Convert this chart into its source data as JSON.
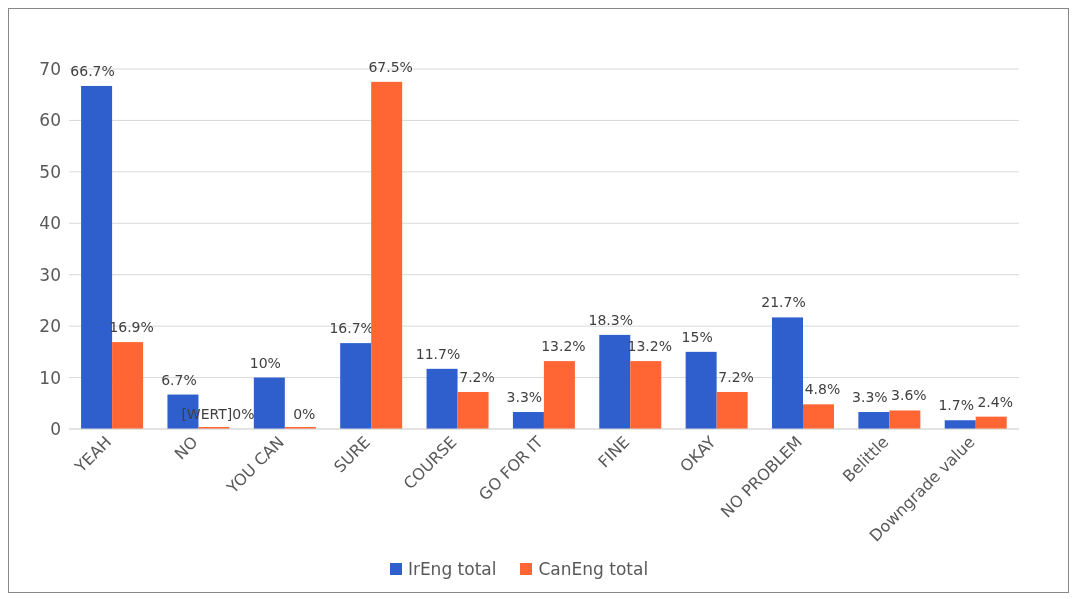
{
  "chart_data": {
    "type": "bar",
    "categories": [
      "YEAH",
      "NO",
      "YOU CAN",
      "SURE",
      "COURSE",
      "GO FOR IT",
      "FINE",
      "OKAY",
      "NO PROBLEM",
      "Belittle",
      "Downgrade value"
    ],
    "series": [
      {
        "name": "IrEng total",
        "color": "#2e5fcc",
        "values": [
          66.7,
          6.7,
          10,
          16.7,
          11.7,
          3.3,
          18.3,
          15,
          21.7,
          3.3,
          1.7
        ],
        "value_labels": [
          "66.7%",
          "6.7%",
          "10%",
          "16.7%",
          "11.7%",
          "3.3%",
          "18.3%",
          "15%",
          "21.7%",
          "3.3%",
          "1.7%"
        ]
      },
      {
        "name": "CanEng total",
        "color": "#ff6633",
        "values": [
          16.9,
          0,
          0,
          67.5,
          7.2,
          13.2,
          13.2,
          7.2,
          4.8,
          3.6,
          2.4
        ],
        "value_labels": [
          "16.9%",
          "[WERT]0%",
          "0%",
          "67.5%",
          "7.2%",
          "13.2%",
          "13.2%",
          "7.2%",
          "4.8%",
          "3.6%",
          "2.4%"
        ]
      }
    ],
    "ylim": [
      0,
      70
    ],
    "yticks": [
      0,
      10,
      20,
      30,
      40,
      50,
      60,
      70
    ],
    "grid": "y",
    "legend": "bottom"
  }
}
